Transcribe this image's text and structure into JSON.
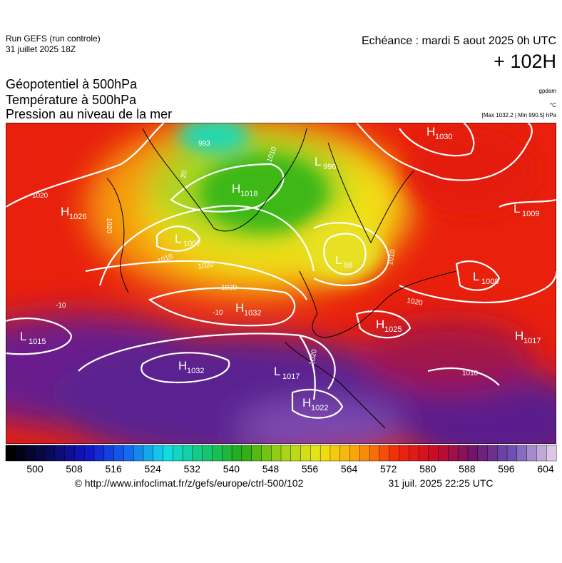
{
  "header": {
    "run": "Run GEFS (run controle)",
    "date": "31 juillet 2025 18Z",
    "echeance": "Echéance : mardi 5 aout 2025 0h UTC",
    "lead": "+ 102H",
    "titles": [
      "Géopotentiel à 500hPa",
      "Température à 500hPa",
      "Pression au niveau de la mer"
    ],
    "units": [
      "gpdam",
      "°C",
      "[Max 1032.2 | Min 990.5] hPa"
    ]
  },
  "map": {
    "centers": [
      {
        "letter": "H",
        "value": "1030"
      },
      {
        "letter": "L",
        "value": "996"
      },
      {
        "letter": "H",
        "value": "1018"
      },
      {
        "letter": "H",
        "value": "1026"
      },
      {
        "letter": "L",
        "value": "1007"
      },
      {
        "letter": "L",
        "value": "98"
      },
      {
        "letter": "L",
        "value": "1009"
      },
      {
        "letter": "L",
        "value": "1008"
      },
      {
        "letter": "H",
        "value": "1032"
      },
      {
        "letter": "H",
        "value": "1025"
      },
      {
        "letter": "L",
        "value": "1015"
      },
      {
        "letter": "H",
        "value": "1017"
      },
      {
        "letter": "H",
        "value": "1032"
      },
      {
        "letter": "L",
        "value": "1017"
      },
      {
        "letter": "H",
        "value": "1022"
      }
    ],
    "contour_labels": [
      "993",
      "1020",
      "1020",
      "1010",
      "20",
      "1020",
      "1030",
      "-10",
      "-10",
      "1020",
      "1020",
      "1010",
      "1010",
      "1010"
    ]
  },
  "colorbar": {
    "ticks": [
      500,
      508,
      516,
      524,
      532,
      540,
      548,
      556,
      564,
      572,
      580,
      588,
      596,
      604
    ]
  },
  "footer": {
    "url": "© http://www.infoclimat.fr/z/gefs/europe/ctrl-500/102",
    "timestamp": "31 juil. 2025 22:25 UTC"
  }
}
